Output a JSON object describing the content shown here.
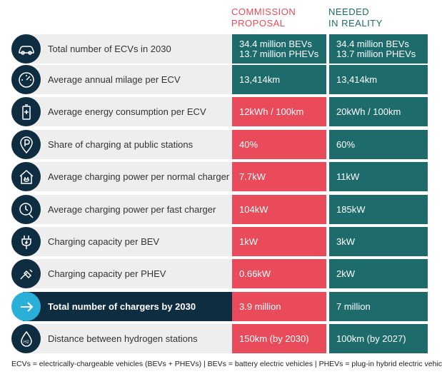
{
  "headers": {
    "commission": "COMMISSION\nPROPOSAL",
    "needed": "NEEDED\nIN REALITY"
  },
  "colors": {
    "navy": "#0f2d40",
    "teal": "#1d6b6b",
    "red": "#e94b5b",
    "cyan": "#2ab0d8",
    "band": "#eeeeee"
  },
  "rows": [
    {
      "icon": "car-icon",
      "label": "Total number of ECVs in 2030",
      "commission": "34.4 million BEVs\n13.7 million PHEVs",
      "needed": "34.4 million BEVs\n13.7 million PHEVs",
      "commission_color": "teal"
    },
    {
      "icon": "speedometer-icon",
      "label": "Average annual milage per ECV",
      "commission": "13,414km",
      "needed": "13,414km",
      "commission_color": "teal"
    },
    {
      "icon": "battery-icon",
      "label": "Average energy consumption per ECV",
      "commission": "12kWh / 100km",
      "needed": "20kWh / 100km",
      "commission_color": "red"
    },
    {
      "icon": "parking-pin-icon",
      "label": "Share of charging at public stations",
      "commission": "40%",
      "needed": "60%",
      "commission_color": "red"
    },
    {
      "icon": "home-plug-icon",
      "label": "Average charging power per normal charger",
      "commission": "7.7kW",
      "needed": "11kW",
      "commission_color": "red"
    },
    {
      "icon": "clock-plug-icon",
      "label": "Average charging power per fast charger",
      "commission": "104kW",
      "needed": "185kW",
      "commission_color": "red"
    },
    {
      "icon": "plug-icon",
      "label": "Charging capacity per BEV",
      "commission": "1kW",
      "needed": "3kW",
      "commission_color": "red"
    },
    {
      "icon": "fuel-plug-icon",
      "label": "Charging capacity per PHEV",
      "commission": "0.66kW",
      "needed": "2kW",
      "commission_color": "red"
    },
    {
      "icon": "arrow-right-icon",
      "label": "Total number of chargers by 2030",
      "commission": "3.9 million",
      "needed": "7 million",
      "commission_color": "red",
      "highlight": true
    },
    {
      "icon": "hydrogen-drop-icon",
      "label": "Distance between hydrogen stations",
      "commission": "150km (by 2030)",
      "needed": "100km (by 2027)",
      "commission_color": "red"
    }
  ],
  "footnote": "ECVs = electrically-chargeable vehicles (BEVs + PHEVs) | BEVs = battery electric vehicles | PHEVs = plug-in hybrid electric vehicles"
}
